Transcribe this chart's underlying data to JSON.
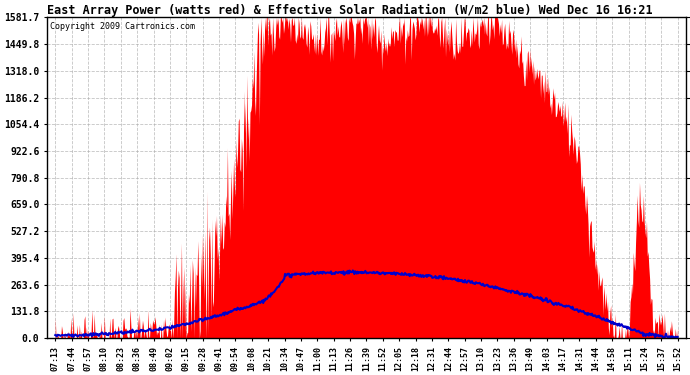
{
  "title": "East Array Power (watts red) & Effective Solar Radiation (W/m2 blue) Wed Dec 16 16:21",
  "copyright": "Copyright 2009 Cartronics.com",
  "bg_color": "#ffffff",
  "plot_bg_color": "#ffffff",
  "grid_color": "#aaaaaa",
  "red_color": "#ff0000",
  "blue_color": "#0000cc",
  "ymax": 1581.7,
  "ymin": 0.0,
  "yticks": [
    0.0,
    131.8,
    263.6,
    395.4,
    527.2,
    659.0,
    790.8,
    922.6,
    1054.4,
    1186.2,
    1318.0,
    1449.8,
    1581.7
  ],
  "xtick_labels": [
    "07:13",
    "07:44",
    "07:57",
    "08:10",
    "08:23",
    "08:36",
    "08:49",
    "09:02",
    "09:15",
    "09:28",
    "09:41",
    "09:54",
    "10:08",
    "10:21",
    "10:34",
    "10:47",
    "11:00",
    "11:13",
    "11:26",
    "11:39",
    "11:52",
    "12:05",
    "12:18",
    "12:31",
    "12:44",
    "12:57",
    "13:10",
    "13:23",
    "13:36",
    "13:49",
    "14:03",
    "14:17",
    "14:31",
    "14:44",
    "14:58",
    "15:11",
    "15:24",
    "15:37",
    "15:52"
  ],
  "n_points": 39,
  "n_fine": 800
}
